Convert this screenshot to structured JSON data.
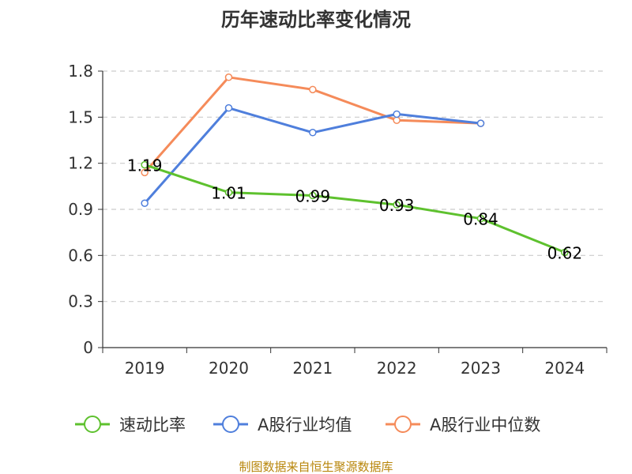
{
  "chart_data": {
    "type": "line",
    "title": "历年速动比率变化情况",
    "categories": [
      "2019",
      "2020",
      "2021",
      "2022",
      "2023",
      "2024"
    ],
    "ylim": [
      0,
      1.8
    ],
    "yticks": [
      "0",
      "0.3",
      "0.6",
      "0.9",
      "1.2",
      "1.5",
      "1.8"
    ],
    "grid": true,
    "legend_position": "bottom",
    "series": [
      {
        "name": "速动比率",
        "color": "#5ec12e",
        "values": [
          1.19,
          1.01,
          0.99,
          0.93,
          0.84,
          0.62
        ],
        "labels": [
          "1.19",
          "1.01",
          "0.99",
          "0.93",
          "0.84",
          "0.62"
        ]
      },
      {
        "name": "A股行业均值",
        "color": "#4f7fdc",
        "values": [
          0.94,
          1.56,
          1.4,
          1.52,
          1.46,
          null
        ]
      },
      {
        "name": "A股行业中位数",
        "color": "#f58b5a",
        "values": [
          1.14,
          1.76,
          1.68,
          1.48,
          1.46,
          null
        ]
      }
    ]
  },
  "source": "制图数据来自恒生聚源数据库"
}
